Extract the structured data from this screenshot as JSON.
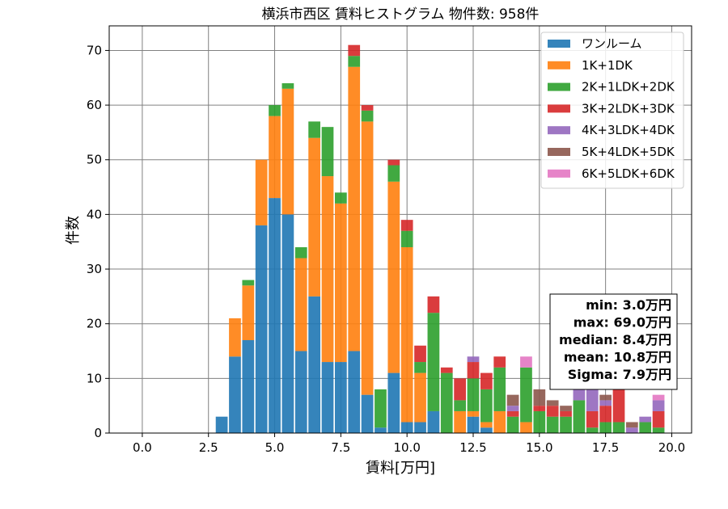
{
  "chart_data": {
    "type": "bar",
    "stacked": true,
    "title": "横浜市西区 賃料ヒストグラム 物件数: 958件",
    "xlabel": "賃料[万円]",
    "ylabel": "件数",
    "xlim": [
      -1.25,
      20.75
    ],
    "ylim": [
      0,
      74.5
    ],
    "xticks": [
      0.0,
      2.5,
      5.0,
      7.5,
      10.0,
      12.5,
      15.0,
      17.5,
      20.0
    ],
    "xtick_labels": [
      "0.0",
      "2.5",
      "5.0",
      "7.5",
      "10.0",
      "12.5",
      "15.0",
      "17.5",
      "20.0"
    ],
    "yticks": [
      0,
      10,
      20,
      30,
      40,
      50,
      60,
      70
    ],
    "ytick_labels": [
      "0",
      "10",
      "20",
      "30",
      "40",
      "50",
      "60",
      "70"
    ],
    "grid": true,
    "legend_position": "top-right",
    "bin_width": 0.5,
    "x": [
      3.0,
      3.5,
      4.0,
      4.5,
      5.0,
      5.5,
      6.0,
      6.5,
      7.0,
      7.5,
      8.0,
      8.5,
      9.0,
      9.5,
      10.0,
      10.5,
      11.0,
      11.5,
      12.0,
      12.5,
      13.0,
      13.5,
      14.0,
      14.5,
      15.0,
      15.5,
      16.0,
      16.5,
      17.0,
      17.5,
      18.0,
      18.5,
      19.0,
      19.5
    ],
    "series": [
      {
        "name": "ワンルーム",
        "color": "#1f77b4",
        "values": [
          3,
          14,
          17,
          38,
          43,
          40,
          15,
          25,
          13,
          13,
          15,
          7,
          1,
          11,
          2,
          2,
          4,
          0,
          0,
          3,
          1,
          0,
          0,
          0,
          0,
          0,
          0,
          0,
          0,
          0,
          0,
          0,
          0,
          0
        ]
      },
      {
        "name": "1K+1DK",
        "color": "#ff7f0e",
        "values": [
          0,
          7,
          10,
          12,
          15,
          23,
          17,
          29,
          34,
          29,
          52,
          50,
          0,
          35,
          32,
          9,
          0,
          0,
          4,
          1,
          1,
          4,
          0,
          2,
          0,
          0,
          0,
          0,
          0,
          0,
          0,
          0,
          0,
          0
        ]
      },
      {
        "name": "2K+1LDK+2DK",
        "color": "#2ca02c",
        "values": [
          0,
          0,
          1,
          0,
          2,
          1,
          2,
          3,
          9,
          2,
          2,
          2,
          7,
          3,
          3,
          2,
          18,
          11,
          2,
          6,
          6,
          8,
          3,
          10,
          4,
          3,
          3,
          6,
          1,
          2,
          2,
          0,
          2,
          1
        ]
      },
      {
        "name": "3K+2LDK+3DK",
        "color": "#d62728",
        "values": [
          0,
          0,
          0,
          0,
          0,
          0,
          0,
          0,
          0,
          0,
          2,
          1,
          0,
          1,
          2,
          3,
          3,
          1,
          4,
          3,
          3,
          2,
          1,
          0,
          1,
          2,
          1,
          0,
          3,
          3,
          7,
          0,
          0,
          3
        ]
      },
      {
        "name": "4K+3LDK+4DK",
        "color": "#9467bd",
        "values": [
          0,
          0,
          0,
          0,
          0,
          0,
          0,
          0,
          0,
          0,
          0,
          0,
          0,
          0,
          0,
          0,
          0,
          0,
          0,
          1,
          0,
          0,
          1,
          0,
          0,
          0,
          0,
          3,
          4,
          1,
          0,
          1,
          1,
          2
        ]
      },
      {
        "name": "5K+4LDK+5DK",
        "color": "#8c564b",
        "values": [
          0,
          0,
          0,
          0,
          0,
          0,
          0,
          0,
          0,
          0,
          0,
          0,
          0,
          0,
          0,
          0,
          0,
          0,
          0,
          0,
          0,
          0,
          2,
          0,
          3,
          1,
          1,
          1,
          1,
          1,
          0,
          1,
          0,
          0
        ]
      },
      {
        "name": "6K+5LDK+6DK",
        "color": "#e377c2",
        "values": [
          0,
          0,
          0,
          0,
          0,
          0,
          0,
          0,
          0,
          0,
          0,
          0,
          0,
          0,
          0,
          0,
          0,
          0,
          0,
          0,
          0,
          0,
          0,
          2,
          0,
          0,
          0,
          0,
          0,
          0,
          0,
          0,
          0,
          1
        ]
      }
    ],
    "stats_box": [
      "min: 3.0万円",
      "max: 69.0万円",
      "median: 8.4万円",
      "mean: 10.8万円",
      "Sigma: 7.9万円"
    ]
  }
}
